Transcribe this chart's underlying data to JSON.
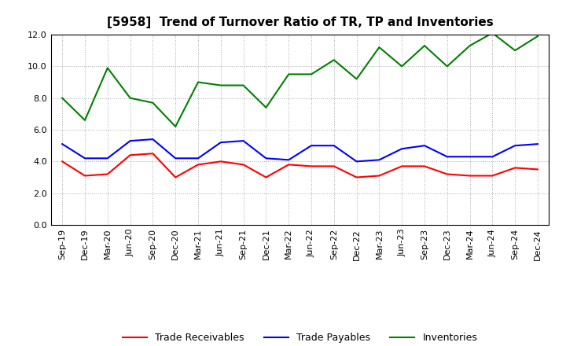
{
  "title": "[5958]  Trend of Turnover Ratio of TR, TP and Inventories",
  "x_labels": [
    "Sep-19",
    "Dec-19",
    "Mar-20",
    "Jun-20",
    "Sep-20",
    "Dec-20",
    "Mar-21",
    "Jun-21",
    "Sep-21",
    "Dec-21",
    "Mar-22",
    "Jun-22",
    "Sep-22",
    "Dec-22",
    "Mar-23",
    "Jun-23",
    "Sep-23",
    "Dec-23",
    "Mar-24",
    "Jun-24",
    "Sep-24",
    "Dec-24"
  ],
  "trade_receivables": [
    4.0,
    3.1,
    3.2,
    4.4,
    4.5,
    3.0,
    3.8,
    4.0,
    3.8,
    3.0,
    3.8,
    3.7,
    3.7,
    3.0,
    3.1,
    3.7,
    3.7,
    3.2,
    3.1,
    3.1,
    3.6,
    3.5
  ],
  "trade_payables": [
    5.1,
    4.2,
    4.2,
    5.3,
    5.4,
    4.2,
    4.2,
    5.2,
    5.3,
    4.2,
    4.1,
    5.0,
    5.0,
    4.0,
    4.1,
    4.8,
    5.0,
    4.3,
    4.3,
    4.3,
    5.0,
    5.1
  ],
  "inventories": [
    8.0,
    6.6,
    9.9,
    8.0,
    7.7,
    6.2,
    9.0,
    8.8,
    8.8,
    7.4,
    9.5,
    9.5,
    10.4,
    9.2,
    11.2,
    10.0,
    11.3,
    10.0,
    11.3,
    12.1,
    11.0,
    11.9
  ],
  "ylim": [
    0.0,
    12.0
  ],
  "yticks": [
    0.0,
    2.0,
    4.0,
    6.0,
    8.0,
    10.0,
    12.0
  ],
  "color_tr": "#ff0000",
  "color_tp": "#0000ff",
  "color_inv": "#008000",
  "legend_tr": "Trade Receivables",
  "legend_tp": "Trade Payables",
  "legend_inv": "Inventories",
  "background_color": "#ffffff",
  "plot_bg_color": "#ffffff",
  "title_fontsize": 11,
  "tick_fontsize": 8,
  "linewidth": 1.5
}
